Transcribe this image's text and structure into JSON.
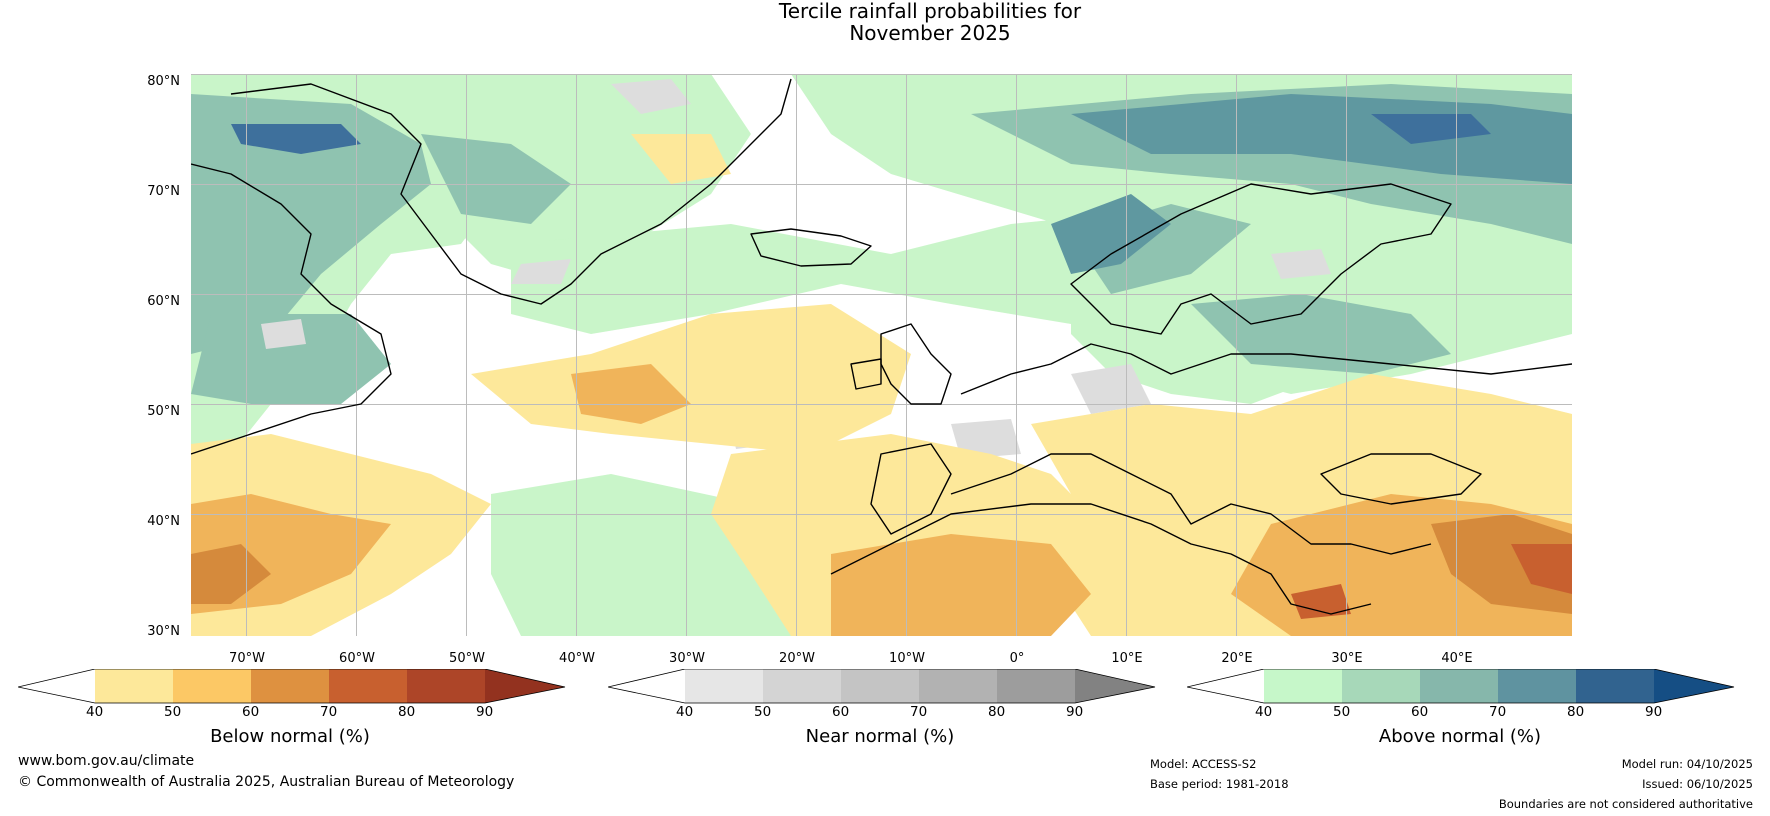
{
  "title": {
    "line1": "Tercile rainfall probabilities for",
    "line2": "November 2025"
  },
  "map": {
    "latitude_labels": [
      "80°N",
      "70°N",
      "60°N",
      "50°N",
      "40°N",
      "30°N"
    ],
    "longitude_labels": [
      "70°W",
      "60°W",
      "50°W",
      "40°W",
      "30°W",
      "20°W",
      "10°W",
      "0°",
      "10°E",
      "20°E",
      "30°E",
      "40°E"
    ],
    "categories": {
      "below": "#fde89a",
      "below_mid": "#f0b45a",
      "near": "#dddddd",
      "above": "#c9f5c9",
      "above_mid": "#8fc3b0",
      "above_high": "#5f98a0",
      "above_top": "#3e709c"
    }
  },
  "colorbars": {
    "below": {
      "title": "Below normal (%)",
      "ticks": [
        "40",
        "50",
        "60",
        "70",
        "80",
        "90"
      ],
      "colors": [
        "#ffffff",
        "#fde89a",
        "#fcc865",
        "#de9140",
        "#c8602f",
        "#ad4528",
        "#93321f"
      ]
    },
    "near": {
      "title": "Near normal (%)",
      "ticks": [
        "40",
        "50",
        "60",
        "70",
        "80",
        "90"
      ],
      "colors": [
        "#ffffff",
        "#e6e6e6",
        "#d4d4d4",
        "#c4c4c4",
        "#b2b2b2",
        "#9d9d9d",
        "#828282"
      ]
    },
    "above": {
      "title": "Above normal (%)",
      "ticks": [
        "40",
        "50",
        "60",
        "70",
        "80",
        "90"
      ],
      "colors": [
        "#ffffff",
        "#c6f7c9",
        "#a7d8b9",
        "#86b7ab",
        "#5f93a0",
        "#31638f",
        "#154e84"
      ]
    }
  },
  "footer": {
    "website": "www.bom.gov.au/climate",
    "copyright": "© Commonwealth of Australia 2025, Australian Bureau of Meteorology",
    "model": "Model: ACCESS-S2",
    "base_period": "Base period: 1981-2018",
    "model_run": "Model run: 04/10/2025",
    "issued": "Issued: 06/10/2025",
    "disclaimer": "Boundaries are not considered authoritative"
  }
}
